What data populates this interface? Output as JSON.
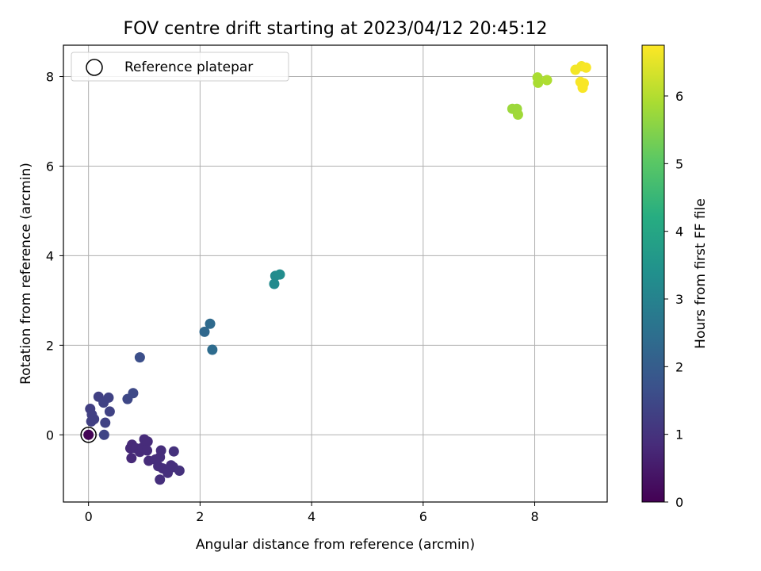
{
  "chart_data": {
    "type": "scatter",
    "title": "FOV centre drift starting at 2023/04/12 20:45:12",
    "xlabel": "Angular distance from reference (arcmin)",
    "ylabel": "Rotation from reference (arcmin)",
    "xlim": [
      -0.45,
      9.3
    ],
    "ylim": [
      -1.5,
      8.7
    ],
    "xticks": [
      0,
      2,
      4,
      6,
      8
    ],
    "yticks": [
      0,
      2,
      4,
      6,
      8
    ],
    "grid": true,
    "legend": {
      "placement": "top-left",
      "entries": [
        "Reference platepar"
      ]
    },
    "reference_point": {
      "x": 0,
      "y": 0,
      "label": "Reference platepar"
    },
    "colorbar": {
      "label": "Hours from first FF file",
      "range": [
        0,
        6.75
      ],
      "ticks": [
        0,
        1,
        2,
        3,
        4,
        5,
        6
      ],
      "colormap": "viridis"
    },
    "points": [
      {
        "x": 0.0,
        "y": 0.0,
        "c": 0.05
      },
      {
        "x": 0.03,
        "y": 0.58,
        "c": 1.25
      },
      {
        "x": 0.06,
        "y": 0.45,
        "c": 1.3
      },
      {
        "x": 0.1,
        "y": 0.35,
        "c": 1.3
      },
      {
        "x": 0.05,
        "y": 0.3,
        "c": 1.3
      },
      {
        "x": 0.18,
        "y": 0.85,
        "c": 1.3
      },
      {
        "x": 0.27,
        "y": 0.72,
        "c": 1.35
      },
      {
        "x": 0.36,
        "y": 0.83,
        "c": 1.35
      },
      {
        "x": 0.38,
        "y": 0.52,
        "c": 1.35
      },
      {
        "x": 0.3,
        "y": 0.27,
        "c": 1.35
      },
      {
        "x": 0.28,
        "y": 0.0,
        "c": 1.4
      },
      {
        "x": 0.7,
        "y": 0.8,
        "c": 1.45
      },
      {
        "x": 0.8,
        "y": 0.93,
        "c": 1.5
      },
      {
        "x": 0.92,
        "y": 1.73,
        "c": 1.65
      },
      {
        "x": 0.78,
        "y": -0.22,
        "c": 0.8
      },
      {
        "x": 0.75,
        "y": -0.3,
        "c": 0.8
      },
      {
        "x": 0.77,
        "y": -0.52,
        "c": 0.8
      },
      {
        "x": 0.85,
        "y": -0.3,
        "c": 0.82
      },
      {
        "x": 0.92,
        "y": -0.38,
        "c": 0.82
      },
      {
        "x": 0.97,
        "y": -0.28,
        "c": 0.85
      },
      {
        "x": 1.0,
        "y": -0.1,
        "c": 0.85
      },
      {
        "x": 1.06,
        "y": -0.15,
        "c": 0.85
      },
      {
        "x": 1.05,
        "y": -0.35,
        "c": 0.85
      },
      {
        "x": 1.08,
        "y": -0.58,
        "c": 0.85
      },
      {
        "x": 1.2,
        "y": -0.55,
        "c": 0.9
      },
      {
        "x": 1.25,
        "y": -0.7,
        "c": 0.9
      },
      {
        "x": 1.3,
        "y": -0.35,
        "c": 0.9
      },
      {
        "x": 1.28,
        "y": -0.5,
        "c": 0.9
      },
      {
        "x": 1.33,
        "y": -0.75,
        "c": 0.9
      },
      {
        "x": 1.28,
        "y": -1.0,
        "c": 0.92
      },
      {
        "x": 1.42,
        "y": -0.85,
        "c": 0.92
      },
      {
        "x": 1.48,
        "y": -0.68,
        "c": 0.92
      },
      {
        "x": 1.52,
        "y": -0.72,
        "c": 0.92
      },
      {
        "x": 1.53,
        "y": -0.37,
        "c": 0.95
      },
      {
        "x": 1.63,
        "y": -0.8,
        "c": 0.95
      },
      {
        "x": 2.08,
        "y": 2.3,
        "c": 2.3
      },
      {
        "x": 2.18,
        "y": 2.48,
        "c": 2.35
      },
      {
        "x": 2.22,
        "y": 1.9,
        "c": 2.4
      },
      {
        "x": 3.33,
        "y": 3.37,
        "c": 3.2
      },
      {
        "x": 3.35,
        "y": 3.55,
        "c": 3.25
      },
      {
        "x": 3.43,
        "y": 3.58,
        "c": 3.3
      },
      {
        "x": 7.6,
        "y": 7.28,
        "c": 5.75
      },
      {
        "x": 7.68,
        "y": 7.28,
        "c": 5.75
      },
      {
        "x": 7.7,
        "y": 7.15,
        "c": 5.8
      },
      {
        "x": 8.05,
        "y": 7.98,
        "c": 5.9
      },
      {
        "x": 8.06,
        "y": 7.86,
        "c": 5.9
      },
      {
        "x": 8.22,
        "y": 7.92,
        "c": 5.95
      },
      {
        "x": 8.73,
        "y": 8.15,
        "c": 6.65
      },
      {
        "x": 8.84,
        "y": 8.23,
        "c": 6.65
      },
      {
        "x": 8.92,
        "y": 8.2,
        "c": 6.7
      },
      {
        "x": 8.82,
        "y": 7.88,
        "c": 6.7
      },
      {
        "x": 8.88,
        "y": 7.85,
        "c": 6.7
      },
      {
        "x": 8.86,
        "y": 7.75,
        "c": 6.7
      }
    ]
  }
}
